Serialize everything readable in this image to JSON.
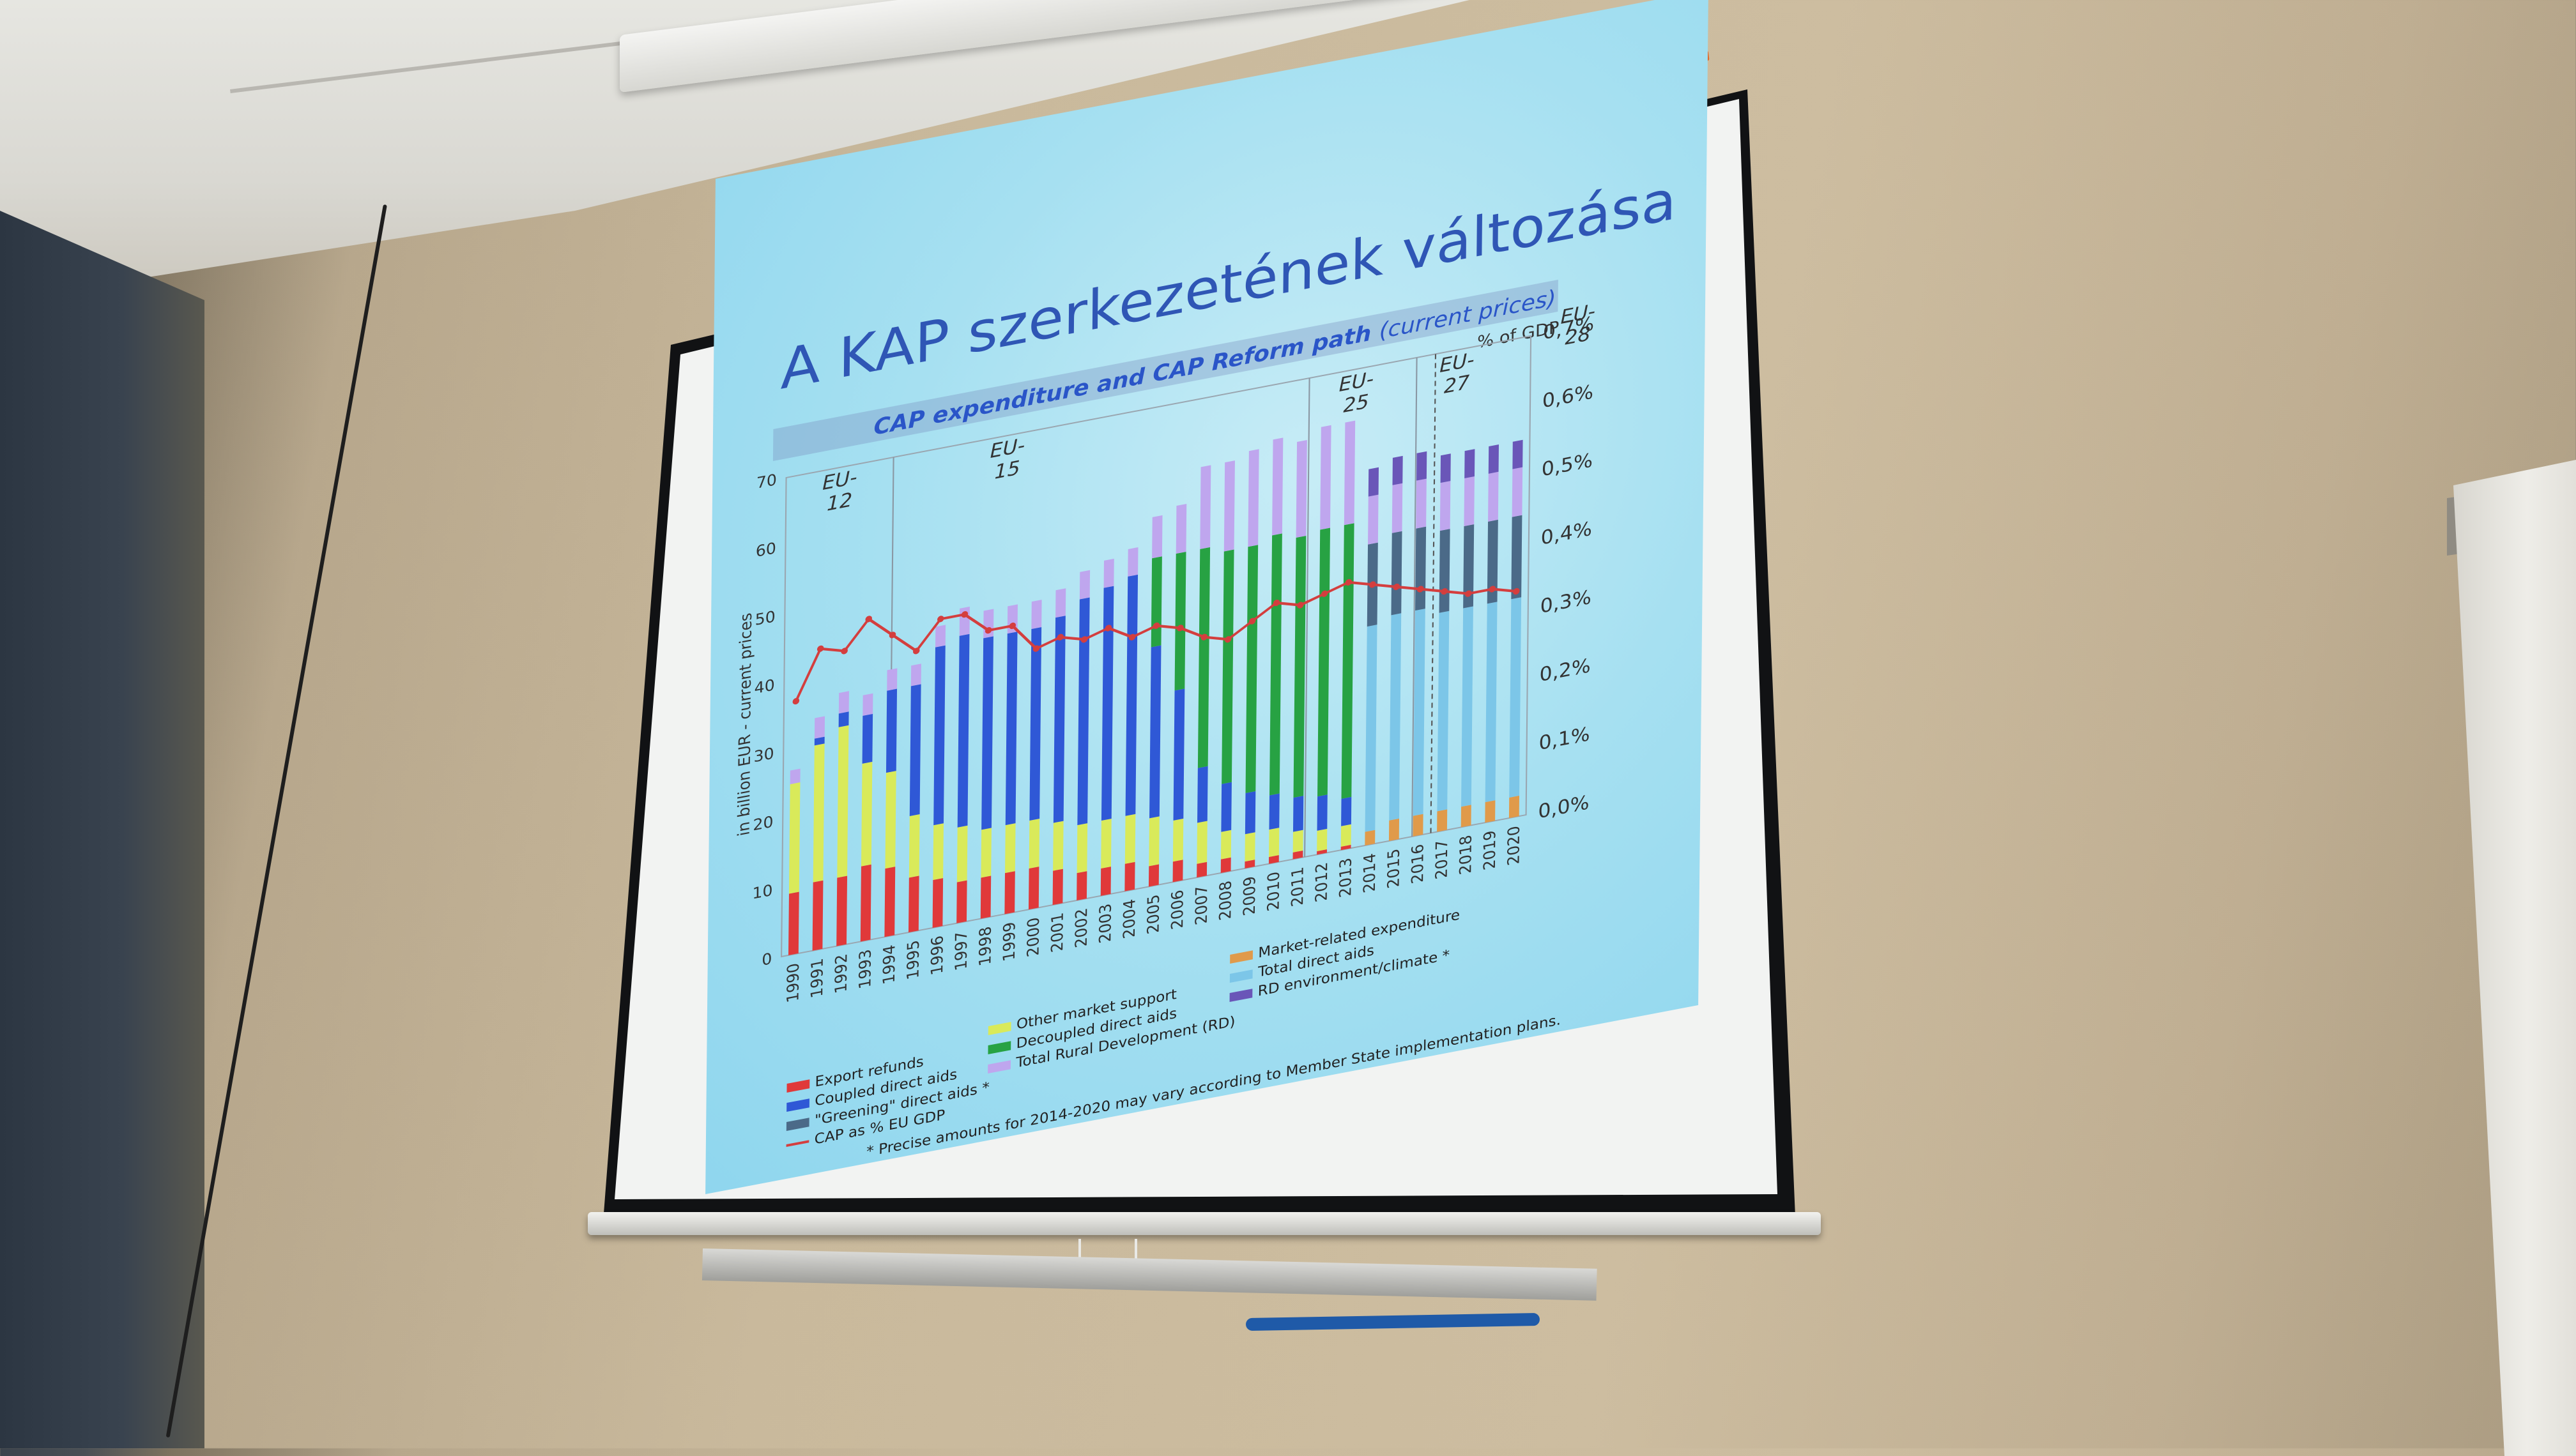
{
  "slide": {
    "title": "A KAP szerkezetének változása",
    "chart_subtitle": "CAP expenditure and CAP Reform path",
    "chart_subtitle_note": "(current prices)",
    "right_axis_title": "% of GDP",
    "footnote": "* Precise amounts for 2014-2020 may vary according to Member State implementation plans."
  },
  "colors": {
    "export_refunds": "#e0393a",
    "other_market_support": "#d9ea5a",
    "market_related": "#e09a4a",
    "coupled_direct_aids": "#2f58d6",
    "decoupled_direct_aids": "#27a243",
    "total_direct_aids": "#7cc6e8",
    "greening": "#4b6a88",
    "total_rural_development": "#bfa6ee",
    "rd_environment": "#6a56b8",
    "cap_line": "#d43e3e"
  },
  "chart_data": {
    "type": "bar",
    "ylabel": "in billion EUR - current prices",
    "y_ticks": [
      "0",
      "10",
      "20",
      "30",
      "40",
      "50",
      "60",
      "70"
    ],
    "y2_ticks": [
      "0,0%",
      "0,1%",
      "0,2%",
      "0,3%",
      "0,4%",
      "0,5%",
      "0,6%",
      "0,7%"
    ],
    "ylim": [
      0,
      70
    ],
    "y2lim": [
      0,
      0.7
    ],
    "categories": [
      "1990",
      "1991",
      "1992",
      "1993",
      "1994",
      "1995",
      "1996",
      "1997",
      "1998",
      "1999",
      "2000",
      "2001",
      "2002",
      "2003",
      "2004",
      "2005",
      "2006",
      "2007",
      "2008",
      "2009",
      "2010",
      "2011",
      "2012",
      "2013",
      "2014",
      "2015",
      "2016",
      "2017",
      "2018",
      "2019",
      "2020"
    ],
    "eras": [
      "EU-12",
      "EU-15",
      "EU-25",
      "EU-27",
      "EU-28"
    ],
    "series": [
      {
        "name": "Export refunds",
        "key": "export_refunds",
        "values": [
          9,
          10,
          10,
          11,
          10,
          8,
          7,
          6,
          6,
          6,
          6,
          5,
          4,
          4,
          4,
          3,
          3,
          2,
          2,
          1,
          1,
          1,
          0.5,
          0.5,
          0,
          0,
          0,
          0,
          0,
          0,
          0
        ]
      },
      {
        "name": "Other market support",
        "key": "other_market_support",
        "values": [
          16,
          20,
          22,
          15,
          14,
          9,
          8,
          8,
          7,
          7,
          7,
          7,
          7,
          7,
          7,
          7,
          6,
          6,
          4,
          4,
          4,
          3,
          3,
          3,
          0,
          0,
          0,
          0,
          0,
          0,
          0
        ]
      },
      {
        "name": "Market-related expenditure",
        "key": "market_related",
        "values": [
          0,
          0,
          0,
          0,
          0,
          0,
          0,
          0,
          0,
          0,
          0,
          0,
          0,
          0,
          0,
          0,
          0,
          0,
          0,
          0,
          0,
          0,
          0,
          0,
          2,
          3,
          3,
          3,
          3,
          3,
          3
        ]
      },
      {
        "name": "Coupled direct aids",
        "key": "coupled_direct_aids",
        "values": [
          0,
          1,
          2,
          7,
          12,
          19,
          26,
          28,
          28,
          28,
          28,
          30,
          33,
          34,
          35,
          25,
          19,
          8,
          7,
          6,
          5,
          5,
          5,
          4,
          0,
          0,
          0,
          0,
          0,
          0,
          0
        ]
      },
      {
        "name": "Decoupled direct aids",
        "key": "decoupled_direct_aids",
        "values": [
          0,
          0,
          0,
          0,
          0,
          0,
          0,
          0,
          0,
          0,
          0,
          0,
          0,
          0,
          0,
          13,
          20,
          32,
          34,
          36,
          38,
          38,
          39,
          40,
          0,
          0,
          0,
          0,
          0,
          0,
          0
        ]
      },
      {
        "name": "Total direct aids",
        "key": "total_direct_aids",
        "values": [
          0,
          0,
          0,
          0,
          0,
          0,
          0,
          0,
          0,
          0,
          0,
          0,
          0,
          0,
          0,
          0,
          0,
          0,
          0,
          0,
          0,
          0,
          0,
          0,
          30,
          30,
          30,
          29,
          29,
          29,
          29
        ]
      },
      {
        "name": "\"Greening\" direct aids *",
        "key": "greening",
        "values": [
          0,
          0,
          0,
          0,
          0,
          0,
          0,
          0,
          0,
          0,
          0,
          0,
          0,
          0,
          0,
          0,
          0,
          0,
          0,
          0,
          0,
          0,
          0,
          0,
          12,
          12,
          12,
          12,
          12,
          12,
          12
        ]
      },
      {
        "name": "Total Rural Development (RD)",
        "key": "total_rural_development",
        "values": [
          2,
          3,
          3,
          3,
          3,
          3,
          3,
          4,
          4,
          4,
          4,
          4,
          4,
          4,
          4,
          6,
          7,
          12,
          13,
          14,
          14,
          14,
          15,
          15,
          7,
          7,
          7,
          7,
          7,
          7,
          7
        ]
      },
      {
        "name": "RD environment/climate *",
        "key": "rd_environment",
        "values": [
          0,
          0,
          0,
          0,
          0,
          0,
          0,
          0,
          0,
          0,
          0,
          0,
          0,
          0,
          0,
          0,
          0,
          0,
          0,
          0,
          0,
          0,
          0,
          0,
          4,
          4,
          4,
          4,
          4,
          4,
          4
        ]
      }
    ],
    "line": {
      "name": "CAP as % EU GDP",
      "values": [
        0.37,
        0.44,
        0.43,
        0.47,
        0.44,
        0.41,
        0.45,
        0.45,
        0.42,
        0.42,
        0.38,
        0.39,
        0.38,
        0.39,
        0.37,
        0.38,
        0.37,
        0.35,
        0.34,
        0.36,
        0.38,
        0.37,
        0.38,
        0.39,
        0.38,
        0.37,
        0.36,
        0.35,
        0.34,
        0.34,
        0.33
      ]
    }
  }
}
